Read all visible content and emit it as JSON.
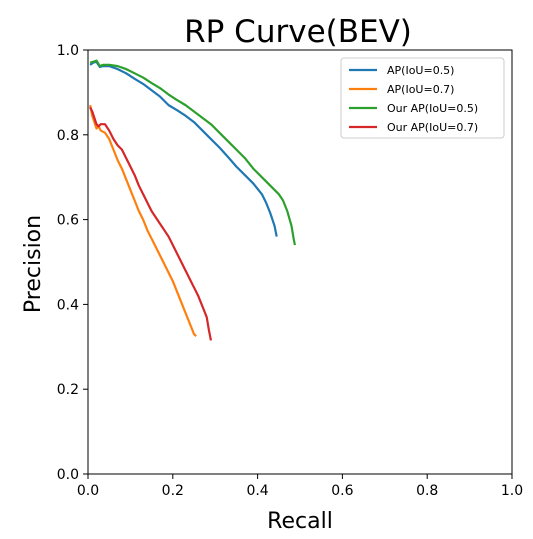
{
  "chart_data": {
    "type": "line",
    "title": "RP Curve(BEV)",
    "xlabel": "Recall",
    "ylabel": "Precision",
    "xlim": [
      0.0,
      1.0
    ],
    "ylim": [
      0.0,
      1.0
    ],
    "xticks": [
      "0.0",
      "0.2",
      "0.4",
      "0.6",
      "0.8",
      "1.0"
    ],
    "yticks": [
      "0.0",
      "0.2",
      "0.4",
      "0.6",
      "0.8",
      "1.0"
    ],
    "grid": false,
    "legend_position": "top-right",
    "series": [
      {
        "name": "AP(IoU=0.5)",
        "color": "#1f77b4",
        "points": [
          [
            0.005,
            0.965
          ],
          [
            0.012,
            0.97
          ],
          [
            0.02,
            0.972
          ],
          [
            0.028,
            0.96
          ],
          [
            0.035,
            0.962
          ],
          [
            0.05,
            0.962
          ],
          [
            0.07,
            0.955
          ],
          [
            0.09,
            0.945
          ],
          [
            0.11,
            0.932
          ],
          [
            0.13,
            0.92
          ],
          [
            0.15,
            0.905
          ],
          [
            0.17,
            0.89
          ],
          [
            0.19,
            0.87
          ],
          [
            0.21,
            0.858
          ],
          [
            0.23,
            0.845
          ],
          [
            0.25,
            0.83
          ],
          [
            0.27,
            0.81
          ],
          [
            0.29,
            0.79
          ],
          [
            0.31,
            0.77
          ],
          [
            0.33,
            0.748
          ],
          [
            0.35,
            0.725
          ],
          [
            0.37,
            0.705
          ],
          [
            0.39,
            0.685
          ],
          [
            0.41,
            0.66
          ],
          [
            0.42,
            0.64
          ],
          [
            0.43,
            0.615
          ],
          [
            0.44,
            0.585
          ],
          [
            0.445,
            0.56
          ]
        ]
      },
      {
        "name": "AP(IoU=0.7)",
        "color": "#ff7f0e",
        "points": [
          [
            0.005,
            0.87
          ],
          [
            0.01,
            0.845
          ],
          [
            0.015,
            0.83
          ],
          [
            0.02,
            0.815
          ],
          [
            0.025,
            0.82
          ],
          [
            0.03,
            0.81
          ],
          [
            0.04,
            0.805
          ],
          [
            0.05,
            0.79
          ],
          [
            0.06,
            0.765
          ],
          [
            0.07,
            0.74
          ],
          [
            0.08,
            0.72
          ],
          [
            0.09,
            0.695
          ],
          [
            0.1,
            0.67
          ],
          [
            0.11,
            0.645
          ],
          [
            0.12,
            0.62
          ],
          [
            0.13,
            0.6
          ],
          [
            0.14,
            0.575
          ],
          [
            0.15,
            0.555
          ],
          [
            0.16,
            0.535
          ],
          [
            0.17,
            0.515
          ],
          [
            0.18,
            0.495
          ],
          [
            0.19,
            0.475
          ],
          [
            0.2,
            0.455
          ],
          [
            0.21,
            0.43
          ],
          [
            0.22,
            0.405
          ],
          [
            0.23,
            0.38
          ],
          [
            0.24,
            0.355
          ],
          [
            0.25,
            0.33
          ],
          [
            0.255,
            0.325
          ]
        ]
      },
      {
        "name": "Our AP(IoU=0.5)",
        "color": "#2ca02c",
        "points": [
          [
            0.005,
            0.97
          ],
          [
            0.012,
            0.972
          ],
          [
            0.02,
            0.975
          ],
          [
            0.028,
            0.962
          ],
          [
            0.035,
            0.965
          ],
          [
            0.05,
            0.965
          ],
          [
            0.07,
            0.962
          ],
          [
            0.09,
            0.955
          ],
          [
            0.11,
            0.945
          ],
          [
            0.13,
            0.935
          ],
          [
            0.15,
            0.922
          ],
          [
            0.17,
            0.91
          ],
          [
            0.19,
            0.895
          ],
          [
            0.21,
            0.882
          ],
          [
            0.23,
            0.87
          ],
          [
            0.25,
            0.855
          ],
          [
            0.27,
            0.84
          ],
          [
            0.29,
            0.825
          ],
          [
            0.31,
            0.805
          ],
          [
            0.33,
            0.785
          ],
          [
            0.35,
            0.765
          ],
          [
            0.37,
            0.745
          ],
          [
            0.39,
            0.72
          ],
          [
            0.41,
            0.7
          ],
          [
            0.43,
            0.68
          ],
          [
            0.45,
            0.66
          ],
          [
            0.46,
            0.645
          ],
          [
            0.47,
            0.62
          ],
          [
            0.48,
            0.585
          ],
          [
            0.485,
            0.555
          ],
          [
            0.488,
            0.54
          ]
        ]
      },
      {
        "name": "Our AP(IoU=0.7)",
        "color": "#d62728",
        "points": [
          [
            0.005,
            0.865
          ],
          [
            0.01,
            0.855
          ],
          [
            0.015,
            0.84
          ],
          [
            0.02,
            0.825
          ],
          [
            0.025,
            0.82
          ],
          [
            0.03,
            0.825
          ],
          [
            0.04,
            0.825
          ],
          [
            0.05,
            0.81
          ],
          [
            0.06,
            0.79
          ],
          [
            0.07,
            0.775
          ],
          [
            0.08,
            0.765
          ],
          [
            0.09,
            0.745
          ],
          [
            0.1,
            0.725
          ],
          [
            0.11,
            0.705
          ],
          [
            0.12,
            0.68
          ],
          [
            0.13,
            0.66
          ],
          [
            0.14,
            0.64
          ],
          [
            0.15,
            0.62
          ],
          [
            0.16,
            0.605
          ],
          [
            0.17,
            0.59
          ],
          [
            0.18,
            0.575
          ],
          [
            0.19,
            0.56
          ],
          [
            0.2,
            0.54
          ],
          [
            0.21,
            0.52
          ],
          [
            0.22,
            0.5
          ],
          [
            0.23,
            0.48
          ],
          [
            0.24,
            0.46
          ],
          [
            0.25,
            0.44
          ],
          [
            0.26,
            0.42
          ],
          [
            0.27,
            0.395
          ],
          [
            0.28,
            0.37
          ],
          [
            0.285,
            0.34
          ],
          [
            0.29,
            0.315
          ]
        ]
      }
    ]
  }
}
